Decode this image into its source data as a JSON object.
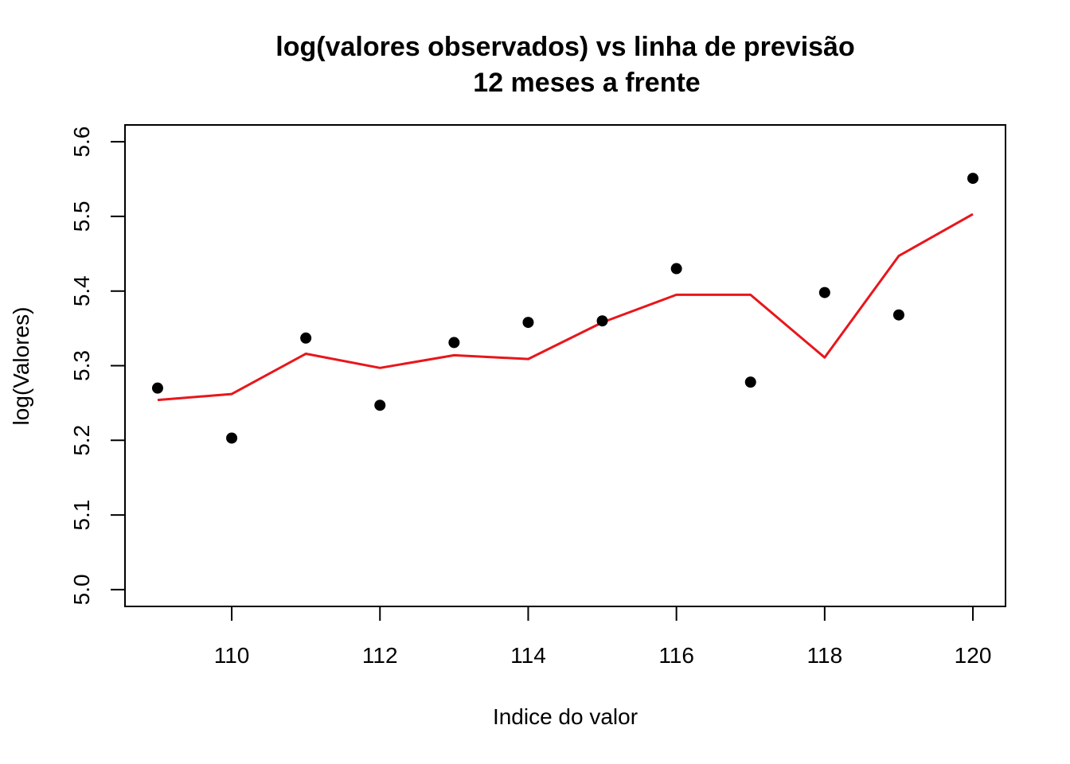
{
  "chart_data": {
    "type": "scatter",
    "title": "log(valores observados) vs linha de previsão",
    "subtitle": "12 meses a frente",
    "xlabel": "Indice do valor",
    "ylabel": "log(Valores)",
    "xlim": [
      108.56,
      120.44
    ],
    "ylim": [
      4.9775,
      5.6225
    ],
    "xticks": [
      "110",
      "112",
      "114",
      "116",
      "118",
      "120"
    ],
    "yticks": [
      "5.0",
      "5.1",
      "5.2",
      "5.3",
      "5.4",
      "5.5",
      "5.6"
    ],
    "grid": false,
    "series": [
      {
        "kind": "points",
        "color": "#000000",
        "x": [
          109,
          110,
          111,
          112,
          113,
          114,
          115,
          116,
          117,
          118,
          119,
          120
        ],
        "y": [
          5.27,
          5.203,
          5.337,
          5.247,
          5.331,
          5.358,
          5.36,
          5.43,
          5.278,
          5.398,
          5.368,
          5.551
        ]
      },
      {
        "kind": "line",
        "color": "#e8161b",
        "x": [
          109,
          110,
          111,
          112,
          113,
          114,
          115,
          116,
          117,
          118,
          119,
          120
        ],
        "y": [
          5.254,
          5.262,
          5.316,
          5.297,
          5.314,
          5.309,
          5.358,
          5.395,
          5.395,
          5.311,
          5.447,
          5.503
        ]
      }
    ]
  }
}
